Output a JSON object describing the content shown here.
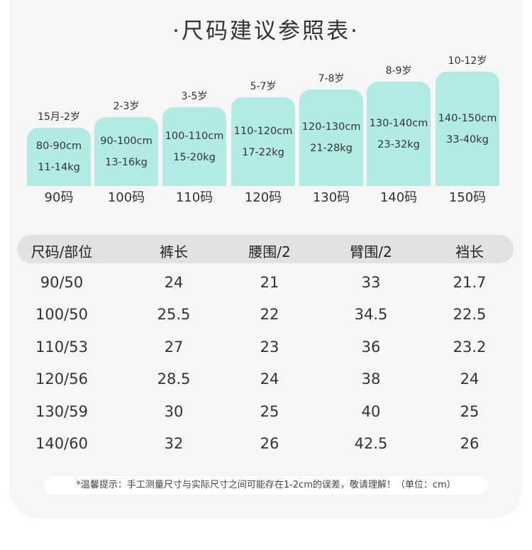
{
  "title": "·尺码建议参照表·",
  "sizes": [
    {
      "age": "15月-2岁",
      "height": "80-90cm",
      "weight": "11-14kg",
      "label": "90码"
    },
    {
      "age": "2-3岁",
      "height": "90-100cm",
      "weight": "13-16kg",
      "label": "100码"
    },
    {
      "age": "3-5岁",
      "height": "100-110cm",
      "weight": "15-20kg",
      "label": "110码"
    },
    {
      "age": "5-7岁",
      "height": "110-120cm",
      "weight": "17-22kg",
      "label": "120码"
    },
    {
      "age": "7-8岁",
      "height": "120-130cm",
      "weight": "21-28kg",
      "label": "130码"
    },
    {
      "age": "8-9岁",
      "height": "130-140cm",
      "weight": "23-32kg",
      "label": "140码"
    },
    {
      "age": "10-12岁",
      "height": "140-150cm",
      "weight": "33-40kg",
      "label": "150码"
    }
  ],
  "table": {
    "headers": [
      "尺码/部位",
      "裤长",
      "腰围/2",
      "臂围/2",
      "裆长"
    ],
    "rows": [
      [
        "90/50",
        "24",
        "21",
        "33",
        "21.7"
      ],
      [
        "100/50",
        "25.5",
        "22",
        "34.5",
        "22.5"
      ],
      [
        "110/53",
        "27",
        "23",
        "36",
        "23.2"
      ],
      [
        "120/56",
        "28.5",
        "24",
        "38",
        "24"
      ],
      [
        "130/59",
        "30",
        "25",
        "40",
        "25"
      ],
      [
        "140/60",
        "32",
        "26",
        "42.5",
        "26"
      ]
    ]
  },
  "note": "*温馨提示：手工测量尺寸与实际尺寸之间可能存在1-2cm的误差，敬请理解！（单位：cm）",
  "colors": {
    "bar": "#b2ebe4",
    "header_bg": "#e2e2e2",
    "card_bg": "#f6f6f6"
  }
}
